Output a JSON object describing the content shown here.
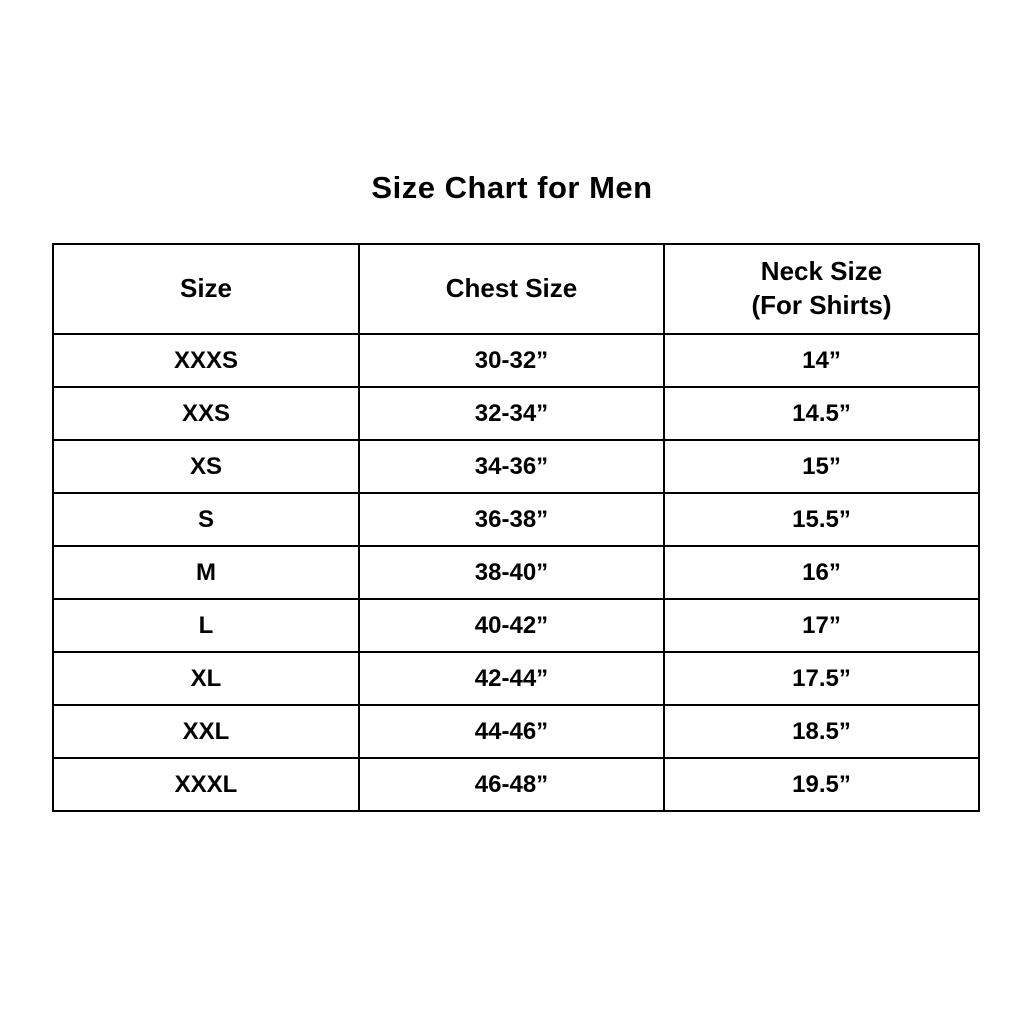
{
  "title": "Size Chart for Men",
  "colors": {
    "background": "#ffffff",
    "border": "#000000",
    "text": "#000000"
  },
  "table": {
    "header": {
      "size": "Size",
      "chest": "Chest Size",
      "neck_line1": "Neck Size",
      "neck_line2": "(For Shirts)"
    },
    "rows": [
      {
        "size": "XXXS",
        "chest": "30-32”",
        "neck": "14”"
      },
      {
        "size": "XXS",
        "chest": "32-34”",
        "neck": "14.5”"
      },
      {
        "size": "XS",
        "chest": "34-36”",
        "neck": "15”"
      },
      {
        "size": "S",
        "chest": "36-38”",
        "neck": "15.5”"
      },
      {
        "size": "M",
        "chest": "38-40”",
        "neck": "16”"
      },
      {
        "size": "L",
        "chest": "40-42”",
        "neck": "17”"
      },
      {
        "size": "XL",
        "chest": "42-44”",
        "neck": "17.5”"
      },
      {
        "size": "XXL",
        "chest": "44-46”",
        "neck": "18.5”"
      },
      {
        "size": "XXXL",
        "chest": "46-48”",
        "neck": "19.5”"
      }
    ]
  },
  "chart_data": {
    "type": "table",
    "title": "Size Chart for Men",
    "columns": [
      "Size",
      "Chest Size",
      "Neck Size (For Shirts)"
    ],
    "rows": [
      [
        "XXXS",
        "30-32”",
        "14”"
      ],
      [
        "XXS",
        "32-34”",
        "14.5”"
      ],
      [
        "XS",
        "34-36”",
        "15”"
      ],
      [
        "S",
        "36-38”",
        "15.5”"
      ],
      [
        "M",
        "38-40”",
        "16”"
      ],
      [
        "L",
        "40-42”",
        "17”"
      ],
      [
        "XL",
        "42-44”",
        "17.5”"
      ],
      [
        "XXL",
        "44-46”",
        "18.5”"
      ],
      [
        "XXXL",
        "46-48”",
        "19.5”"
      ]
    ]
  }
}
